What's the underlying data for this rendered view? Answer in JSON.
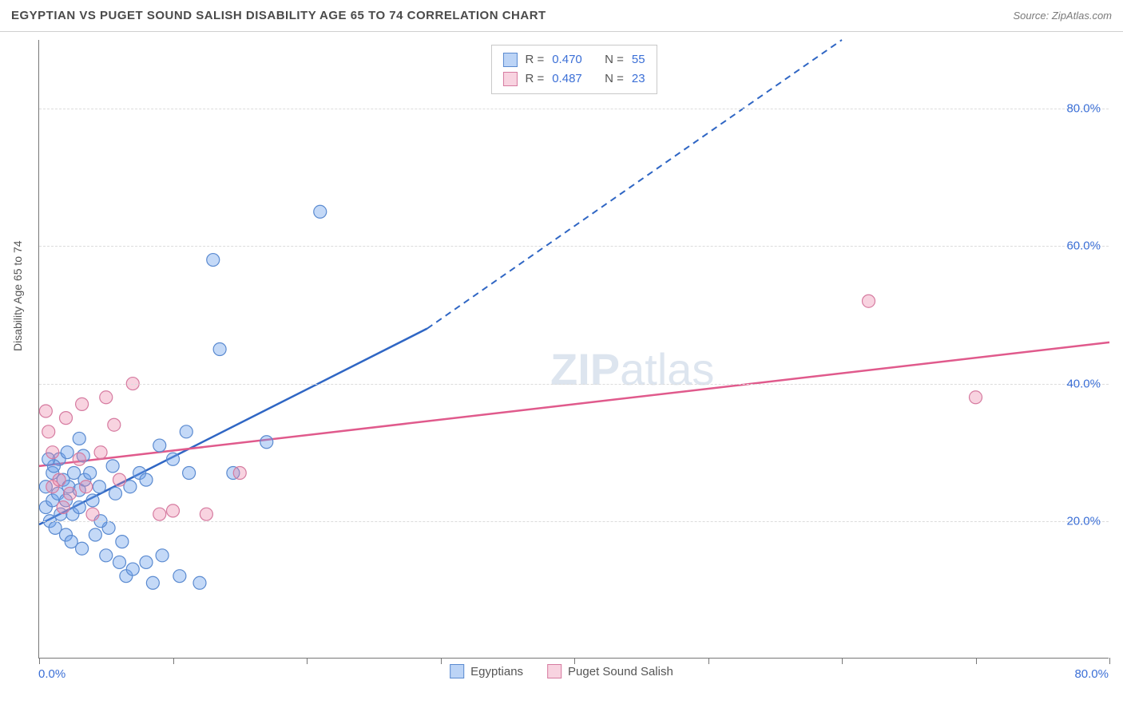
{
  "title": "EGYPTIAN VS PUGET SOUND SALISH DISABILITY AGE 65 TO 74 CORRELATION CHART",
  "source_label": "Source: ZipAtlas.com",
  "y_axis_label": "Disability Age 65 to 74",
  "watermark": {
    "part1": "ZIP",
    "part2": "atlas"
  },
  "chart": {
    "type": "scatter-with-regression",
    "background_color": "#ffffff",
    "grid_color": "#dcdcdc",
    "axis_color": "#777777",
    "xlim": [
      0,
      80
    ],
    "ylim": [
      0,
      90
    ],
    "x_ticks": [
      0,
      10,
      20,
      30,
      40,
      50,
      60,
      70,
      80
    ],
    "x_tick_labels_shown": {
      "0": "0.0%",
      "80": "80.0%"
    },
    "y_ticks": [
      20,
      40,
      60,
      80
    ],
    "y_tick_labels": [
      "20.0%",
      "40.0%",
      "60.0%",
      "80.0%"
    ],
    "tick_label_color": "#3b6fd6",
    "tick_label_fontsize": 15,
    "marker_radius": 8,
    "series": [
      {
        "name": "Egyptians",
        "color_fill": "rgba(107,159,235,0.40)",
        "color_stroke": "#5a8ad0",
        "line_color": "#2f66c4",
        "line_width": 2.5,
        "r_value": "0.470",
        "n_value": "55",
        "regression": {
          "x1": 0,
          "y1": 19.5,
          "x2_solid": 29,
          "y2_solid": 48,
          "x2_dash": 60,
          "y2_dash": 90
        },
        "points": [
          [
            0.5,
            22
          ],
          [
            0.5,
            25
          ],
          [
            0.8,
            20
          ],
          [
            1,
            23
          ],
          [
            1,
            27
          ],
          [
            1.2,
            19
          ],
          [
            1.4,
            24
          ],
          [
            1.5,
            29
          ],
          [
            1.6,
            21
          ],
          [
            1.8,
            26
          ],
          [
            2,
            18
          ],
          [
            2,
            23
          ],
          [
            2.2,
            25
          ],
          [
            2.4,
            17
          ],
          [
            2.5,
            21
          ],
          [
            2.6,
            27
          ],
          [
            3,
            22
          ],
          [
            3,
            24.5
          ],
          [
            3.2,
            16
          ],
          [
            3.4,
            26
          ],
          [
            3.8,
            27
          ],
          [
            4,
            23
          ],
          [
            4.2,
            18
          ],
          [
            4.5,
            25
          ],
          [
            5,
            15
          ],
          [
            5.2,
            19
          ],
          [
            5.5,
            28
          ],
          [
            6,
            14
          ],
          [
            6.2,
            17
          ],
          [
            6.5,
            12
          ],
          [
            6.8,
            25
          ],
          [
            7,
            13
          ],
          [
            7.5,
            27
          ],
          [
            8,
            26
          ],
          [
            8,
            14
          ],
          [
            8.5,
            11
          ],
          [
            9,
            31
          ],
          [
            9.2,
            15
          ],
          [
            10,
            29
          ],
          [
            10.5,
            12
          ],
          [
            11,
            33
          ],
          [
            11.2,
            27
          ],
          [
            12,
            11
          ],
          [
            13,
            58
          ],
          [
            13.5,
            45
          ],
          [
            14.5,
            27
          ],
          [
            17,
            31.5
          ],
          [
            21,
            65
          ],
          [
            3.3,
            29.5
          ],
          [
            4.6,
            20
          ],
          [
            5.7,
            24
          ],
          [
            2.1,
            30
          ],
          [
            1.1,
            28
          ],
          [
            0.7,
            29
          ],
          [
            3.0,
            32
          ]
        ]
      },
      {
        "name": "Puget Sound Salish",
        "color_fill": "rgba(235,130,165,0.35)",
        "color_stroke": "#d67ba0",
        "line_color": "#e05a8c",
        "line_width": 2.5,
        "r_value": "0.487",
        "n_value": "23",
        "regression": {
          "x1": 0,
          "y1": 28,
          "x2_solid": 80,
          "y2_solid": 46,
          "x2_dash": 80,
          "y2_dash": 46
        },
        "points": [
          [
            0.5,
            36
          ],
          [
            0.7,
            33
          ],
          [
            1,
            30
          ],
          [
            1,
            25
          ],
          [
            1.5,
            26
          ],
          [
            1.8,
            22
          ],
          [
            2,
            35
          ],
          [
            2.3,
            24
          ],
          [
            3,
            29
          ],
          [
            3.2,
            37
          ],
          [
            3.5,
            25
          ],
          [
            4,
            21
          ],
          [
            4.6,
            30
          ],
          [
            5,
            38
          ],
          [
            5.6,
            34
          ],
          [
            6,
            26
          ],
          [
            7,
            40
          ],
          [
            9,
            21
          ],
          [
            10,
            21.5
          ],
          [
            12.5,
            21
          ],
          [
            15,
            27
          ],
          [
            62,
            52
          ],
          [
            70,
            38
          ]
        ]
      }
    ]
  },
  "legend_top": {
    "r_prefix": "R =",
    "n_prefix": "N ="
  },
  "legend_bottom": {
    "items": [
      "Egyptians",
      "Puget Sound Salish"
    ]
  }
}
